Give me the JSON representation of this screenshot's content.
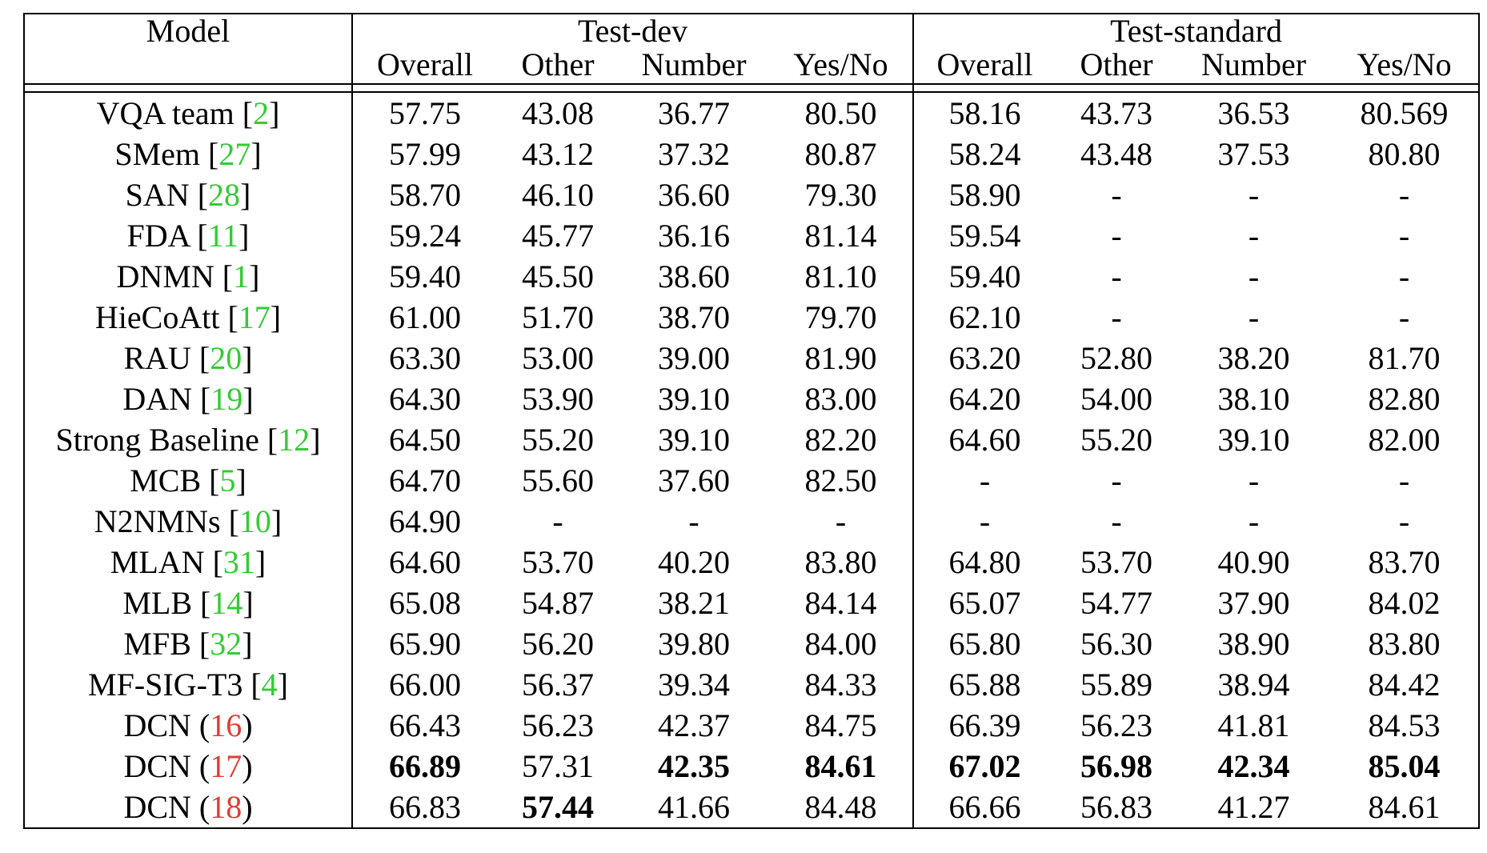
{
  "header": {
    "model": "Model",
    "test_dev": "Test-dev",
    "test_standard": "Test-standard",
    "columns": [
      "Overall",
      "Other",
      "Number",
      "Yes/No",
      "Overall",
      "Other",
      "Number",
      "Yes/No"
    ]
  },
  "colors": {
    "citation_green": "#33cc33",
    "citation_red": "#e03c31"
  },
  "rows": [
    {
      "name": "VQA team",
      "cite": "2",
      "open": "[",
      "close": "]",
      "cite_color": "green",
      "values": [
        "57.75",
        "43.08",
        "36.77",
        "80.50",
        "58.16",
        "43.73",
        "36.53",
        "80.569"
      ],
      "bold": []
    },
    {
      "name": "SMem",
      "cite": "27",
      "open": "[",
      "close": "]",
      "cite_color": "green",
      "values": [
        "57.99",
        "43.12",
        "37.32",
        "80.87",
        "58.24",
        "43.48",
        "37.53",
        "80.80"
      ],
      "bold": []
    },
    {
      "name": "SAN",
      "cite": "28",
      "open": "[",
      "close": "]",
      "cite_color": "green",
      "values": [
        "58.70",
        "46.10",
        "36.60",
        "79.30",
        "58.90",
        "-",
        "-",
        "-"
      ],
      "bold": []
    },
    {
      "name": "FDA",
      "cite": "11",
      "open": "[",
      "close": "]",
      "cite_color": "green",
      "values": [
        "59.24",
        "45.77",
        "36.16",
        "81.14",
        "59.54",
        "-",
        "-",
        "-"
      ],
      "bold": []
    },
    {
      "name": "DNMN",
      "cite": "1",
      "open": "[",
      "close": "]",
      "cite_color": "green",
      "values": [
        "59.40",
        "45.50",
        "38.60",
        "81.10",
        "59.40",
        "-",
        "-",
        "-"
      ],
      "bold": []
    },
    {
      "name": "HieCoAtt",
      "cite": "17",
      "open": "[",
      "close": "]",
      "cite_color": "green",
      "values": [
        "61.00",
        "51.70",
        "38.70",
        "79.70",
        "62.10",
        "-",
        "-",
        "-"
      ],
      "bold": []
    },
    {
      "name": "RAU",
      "cite": "20",
      "open": "[",
      "close": "]",
      "cite_color": "green",
      "values": [
        "63.30",
        "53.00",
        "39.00",
        "81.90",
        "63.20",
        "52.80",
        "38.20",
        "81.70"
      ],
      "bold": []
    },
    {
      "name": "DAN",
      "cite": "19",
      "open": "[",
      "close": "]",
      "cite_color": "green",
      "values": [
        "64.30",
        "53.90",
        "39.10",
        "83.00",
        "64.20",
        "54.00",
        "38.10",
        "82.80"
      ],
      "bold": []
    },
    {
      "name": "Strong Baseline",
      "cite": "12",
      "open": "[",
      "close": "]",
      "cite_color": "green",
      "values": [
        "64.50",
        "55.20",
        "39.10",
        "82.20",
        "64.60",
        "55.20",
        "39.10",
        "82.00"
      ],
      "bold": []
    },
    {
      "name": "MCB",
      "cite": "5",
      "open": "[",
      "close": "]",
      "cite_color": "green",
      "values": [
        "64.70",
        "55.60",
        "37.60",
        "82.50",
        "-",
        "-",
        "-",
        "-"
      ],
      "bold": []
    },
    {
      "name": "N2NMNs",
      "cite": "10",
      "open": "[",
      "close": "]",
      "cite_color": "green",
      "values": [
        "64.90",
        "-",
        "-",
        "-",
        "-",
        "-",
        "-",
        "-"
      ],
      "bold": []
    },
    {
      "name": "MLAN",
      "cite": "31",
      "open": "[",
      "close": "]",
      "cite_color": "green",
      "values": [
        "64.60",
        "53.70",
        "40.20",
        "83.80",
        "64.80",
        "53.70",
        "40.90",
        "83.70"
      ],
      "bold": []
    },
    {
      "name": "MLB",
      "cite": "14",
      "open": "[",
      "close": "]",
      "cite_color": "green",
      "values": [
        "65.08",
        "54.87",
        "38.21",
        "84.14",
        "65.07",
        "54.77",
        "37.90",
        "84.02"
      ],
      "bold": []
    },
    {
      "name": "MFB",
      "cite": "32",
      "open": "[",
      "close": "]",
      "cite_color": "green",
      "values": [
        "65.90",
        "56.20",
        "39.80",
        "84.00",
        "65.80",
        "56.30",
        "38.90",
        "83.80"
      ],
      "bold": []
    },
    {
      "name": "MF-SIG-T3",
      "cite": "4",
      "open": "[",
      "close": "]",
      "cite_color": "green",
      "values": [
        "66.00",
        "56.37",
        "39.34",
        "84.33",
        "65.88",
        "55.89",
        "38.94",
        "84.42"
      ],
      "bold": []
    },
    {
      "name": "DCN",
      "cite": "16",
      "open": "(",
      "close": ")",
      "cite_color": "red",
      "values": [
        "66.43",
        "56.23",
        "42.37",
        "84.75",
        "66.39",
        "56.23",
        "41.81",
        "84.53"
      ],
      "bold": []
    },
    {
      "name": "DCN",
      "cite": "17",
      "open": "(",
      "close": ")",
      "cite_color": "red",
      "values": [
        "66.89",
        "57.31",
        "42.35",
        "84.61",
        "67.02",
        "56.98",
        "42.34",
        "85.04"
      ],
      "bold": [
        0,
        2,
        3,
        4,
        5,
        6,
        7
      ]
    },
    {
      "name": "DCN",
      "cite": "18",
      "open": "(",
      "close": ")",
      "cite_color": "red",
      "values": [
        "66.83",
        "57.44",
        "41.66",
        "84.48",
        "66.66",
        "56.83",
        "41.27",
        "84.61"
      ],
      "bold": [
        1
      ]
    }
  ]
}
